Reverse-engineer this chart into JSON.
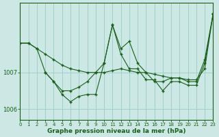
{
  "title": "Graphe pression niveau de la mer (hPa)",
  "bg_color": "#cce8e4",
  "plot_bg_color": "#cce8e4",
  "grid_color": "#99ccc4",
  "line_color": "#1a5c1a",
  "axis_color": "#1a5c1a",
  "x_ticks": [
    0,
    1,
    2,
    3,
    4,
    5,
    6,
    7,
    8,
    9,
    10,
    11,
    12,
    13,
    14,
    15,
    16,
    17,
    18,
    19,
    20,
    21,
    22,
    23
  ],
  "xlim": [
    0,
    23
  ],
  "ylim": [
    1005.7,
    1008.9
  ],
  "yticks": [
    1006,
    1007
  ],
  "series1_x": [
    0,
    1,
    2,
    3,
    4,
    5,
    6,
    7,
    8,
    9,
    10,
    11,
    12,
    13,
    14,
    15,
    16,
    17,
    18,
    19,
    20,
    21,
    22,
    23
  ],
  "series1_y": [
    1007.8,
    1007.8,
    1007.65,
    1007.5,
    1007.35,
    1007.2,
    1007.1,
    1007.05,
    1007.0,
    1007.0,
    1007.0,
    1007.05,
    1007.1,
    1007.05,
    1007.0,
    1007.0,
    1006.95,
    1006.9,
    1006.85,
    1006.85,
    1006.8,
    1006.8,
    1007.1,
    1008.6
  ],
  "series2_x": [
    0,
    1,
    2,
    3,
    4,
    5,
    6,
    7,
    8,
    9,
    10,
    11,
    12,
    13,
    14,
    15,
    16,
    17,
    18,
    19,
    20,
    21,
    22,
    23
  ],
  "series2_y": [
    1007.8,
    1007.8,
    1007.65,
    1007.0,
    1006.75,
    1006.5,
    1006.5,
    1006.6,
    1006.75,
    1007.0,
    1007.25,
    1008.3,
    1007.65,
    1007.85,
    1007.25,
    1007.0,
    1006.75,
    1006.75,
    1006.85,
    1006.85,
    1006.75,
    1006.75,
    1007.35,
    1008.6
  ],
  "series3_x": [
    3,
    4,
    5,
    6,
    7,
    8,
    9,
    10,
    11,
    12,
    13,
    14,
    15,
    16,
    17,
    18,
    19,
    20,
    21,
    22,
    23
  ],
  "series3_y": [
    1007.0,
    1006.75,
    1006.4,
    1006.2,
    1006.35,
    1006.4,
    1006.4,
    1007.25,
    1008.3,
    1007.5,
    1007.1,
    1007.1,
    1006.8,
    1006.8,
    1006.5,
    1006.75,
    1006.75,
    1006.65,
    1006.65,
    1007.25,
    1008.6
  ]
}
